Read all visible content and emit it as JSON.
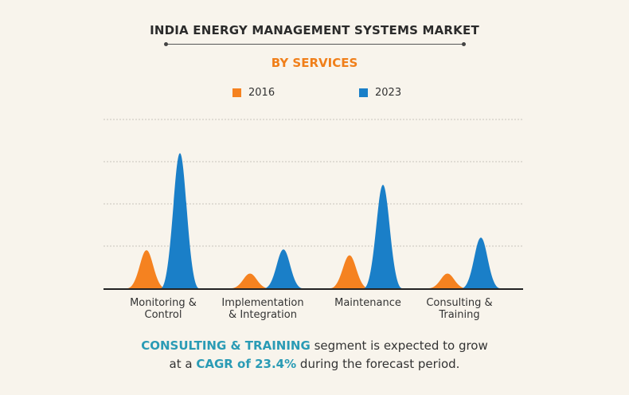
{
  "header": {
    "title": "INDIA ENERGY MANAGEMENT SYSTEMS MARKET",
    "subtitle": "BY SERVICES"
  },
  "colors": {
    "2016": "#f58220",
    "2023": "#1a7fc8",
    "highlight": "#2a9bb5",
    "subtitle": "#f07f1a"
  },
  "chart_data": {
    "type": "area",
    "title": "INDIA ENERGY MANAGEMENT SYSTEMS MARKET",
    "subtitle": "BY SERVICES",
    "categories": [
      "Monitoring & Control",
      "Implementation & Integration",
      "Maintenance",
      "Consulting & Training"
    ],
    "series": [
      {
        "name": "2016",
        "color": "#f58220",
        "values": [
          0.9,
          0.35,
          0.78,
          0.35
        ]
      },
      {
        "name": "2023",
        "color": "#1a7fc8",
        "values": [
          3.2,
          0.92,
          2.45,
          1.2
        ]
      }
    ],
    "ylim": [
      0,
      4
    ],
    "grid": true,
    "legend": "top-center",
    "xlabel": "",
    "ylabel": ""
  },
  "legend": {
    "items": [
      "2016",
      "2023"
    ]
  },
  "footer": {
    "line1_highlight": "CONSULTING & TRAINING",
    "line1_rest": " segment is expected to grow",
    "line2_pre": "at a ",
    "line2_highlight": "CAGR of 23.4%",
    "line2_post": " during the forecast period."
  }
}
